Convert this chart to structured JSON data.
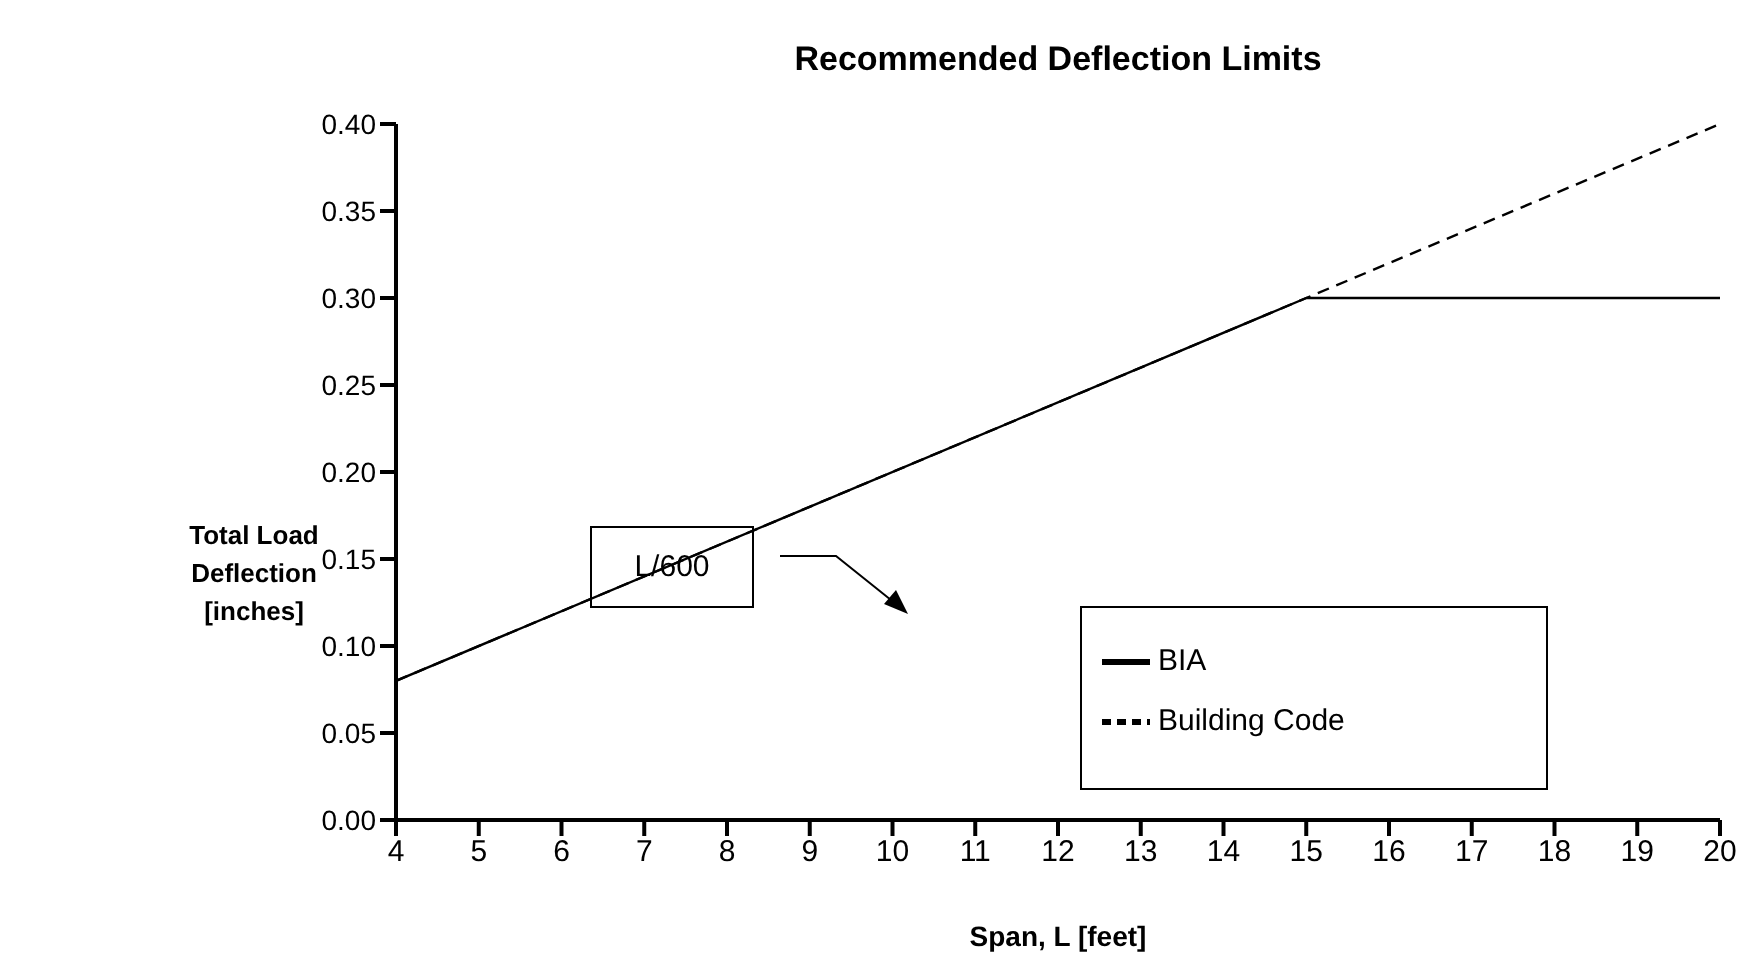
{
  "chart_data": {
    "type": "line",
    "title": "Recommended Deflection Limits",
    "xlabel": "Span, L [feet]",
    "ylabel": "Total Load Deflection [inches]",
    "x": [
      4,
      15,
      20
    ],
    "series": [
      {
        "name": "Building Code",
        "color": "#000000",
        "line_style": "dashed",
        "values": [
          0.08,
          0.3,
          0.4
        ]
      },
      {
        "name": "BIA",
        "color": "#000000",
        "line_style": "solid",
        "values": [
          0.08,
          0.3,
          0.3
        ]
      }
    ],
    "xlim": [
      4,
      20
    ],
    "xticks": [
      4,
      5,
      6,
      7,
      8,
      9,
      10,
      11,
      12,
      13,
      14,
      15,
      16,
      17,
      18,
      19,
      20
    ],
    "ylim": [
      0,
      0.4
    ],
    "yticks": [
      {
        "value": 0,
        "label": "0.00"
      },
      {
        "value": 0.05,
        "label": "0.05"
      },
      {
        "value": 0.1,
        "label": "0.10"
      },
      {
        "value": 0.15,
        "label": "0.15"
      },
      {
        "value": 0.2,
        "label": "0.20"
      },
      {
        "value": 0.25,
        "label": "0.25"
      },
      {
        "value": 0.3,
        "label": "0.30"
      },
      {
        "value": 0.35,
        "label": "0.35"
      },
      {
        "value": 0.4,
        "label": "0.40"
      }
    ],
    "annotations": [
      "L/600"
    ],
    "legend": "bottom right",
    "grid": false,
    "marker": "none"
  }
}
